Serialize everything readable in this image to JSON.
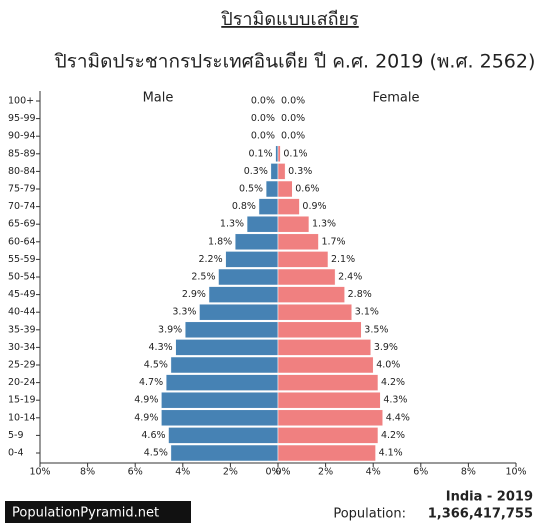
{
  "header": {
    "title": "ปิรามิดแบบเสถียร",
    "subtitle": "ปิรามิดประชากรประเทศอินเดีย ปี ค.ศ. 2019 (พ.ศ. 2562)"
  },
  "chart_data": {
    "type": "pyramid",
    "categories": [
      "100+",
      "95-99",
      "90-94",
      "85-89",
      "80-84",
      "75-79",
      "70-74",
      "65-69",
      "60-64",
      "55-59",
      "50-54",
      "45-49",
      "40-44",
      "35-39",
      "30-34",
      "25-29",
      "20-24",
      "15-19",
      "10-14",
      "5-9",
      "0-4"
    ],
    "series": [
      {
        "name": "Male",
        "color": "#4682b4",
        "values": [
          0.0,
          0.0,
          0.0,
          0.1,
          0.3,
          0.5,
          0.8,
          1.3,
          1.8,
          2.2,
          2.5,
          2.9,
          3.3,
          3.9,
          4.3,
          4.5,
          4.7,
          4.9,
          4.9,
          4.6,
          4.5
        ],
        "value_labels": [
          "0.0%",
          "0.0%",
          "0.0%",
          "0.1%",
          "0.3%",
          "0.5%",
          "0.8%",
          "1.3%",
          "1.8%",
          "2.2%",
          "2.5%",
          "2.9%",
          "3.3%",
          "3.9%",
          "4.3%",
          "4.5%",
          "4.7%",
          "4.9%",
          "4.9%",
          "4.6%",
          "4.5%"
        ]
      },
      {
        "name": "Female",
        "color": "#f08080",
        "values": [
          0.0,
          0.0,
          0.0,
          0.1,
          0.3,
          0.6,
          0.9,
          1.3,
          1.7,
          2.1,
          2.4,
          2.8,
          3.1,
          3.5,
          3.9,
          4.0,
          4.2,
          4.3,
          4.4,
          4.2,
          4.1
        ],
        "value_labels": [
          "0.0%",
          "0.0%",
          "0.0%",
          "0.1%",
          "0.3%",
          "0.6%",
          "0.9%",
          "1.3%",
          "1.7%",
          "2.1%",
          "2.4%",
          "2.8%",
          "3.1%",
          "3.5%",
          "3.9%",
          "4.0%",
          "4.2%",
          "4.3%",
          "4.4%",
          "4.2%",
          "4.1%"
        ]
      }
    ],
    "xlim": [
      0,
      10
    ],
    "xticks": [
      {
        "value": 0,
        "label": "0%"
      },
      {
        "value": 2,
        "label": "2%"
      },
      {
        "value": 4,
        "label": "4%"
      },
      {
        "value": 6,
        "label": "6%"
      },
      {
        "value": 8,
        "label": "8%"
      },
      {
        "value": 10,
        "label": "10%"
      }
    ]
  },
  "footer": {
    "source": "PopulationPyramid.net",
    "country_year": "India - 2019",
    "population_label": "Population:",
    "population": "1,366,417,755"
  }
}
